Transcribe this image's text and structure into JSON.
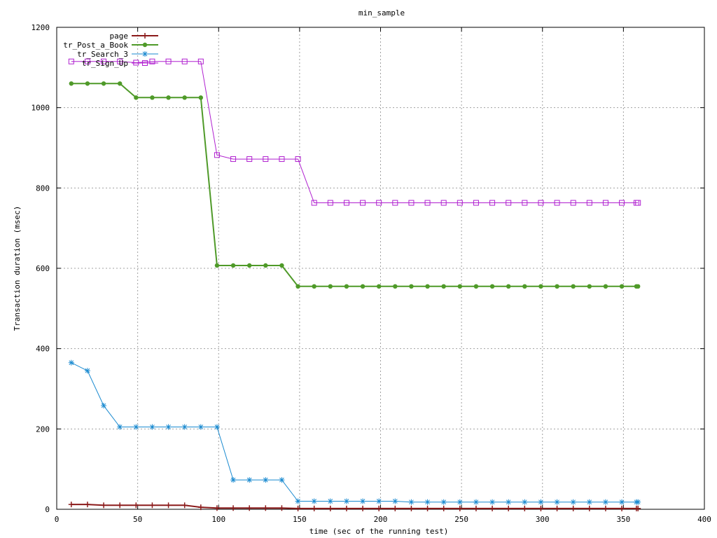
{
  "chart_data": {
    "type": "line",
    "title": "min_sample",
    "xlabel": "time (sec of the running test)",
    "ylabel": "Transaction duration (msec)",
    "xlim": [
      0,
      400
    ],
    "ylim": [
      0,
      1200
    ],
    "xticks": [
      0,
      50,
      100,
      150,
      200,
      250,
      300,
      350,
      400
    ],
    "yticks": [
      0,
      200,
      400,
      600,
      800,
      1000,
      1200
    ],
    "grid": true,
    "legend_position": "top-left",
    "x": [
      9,
      19,
      29,
      39,
      49,
      59,
      69,
      79,
      89,
      99,
      109,
      119,
      129,
      139,
      149,
      159,
      169,
      179,
      189,
      199,
      209,
      219,
      229,
      239,
      249,
      259,
      269,
      279,
      289,
      299,
      309,
      319,
      329,
      339,
      349,
      358,
      359
    ],
    "series": [
      {
        "name": "page",
        "color": "#8b1a1a",
        "marker": "plus",
        "values": [
          12,
          12,
          10,
          10,
          10,
          10,
          10,
          10,
          5,
          3,
          3,
          3,
          3,
          3,
          2,
          2,
          2,
          2,
          2,
          2,
          2,
          2,
          2,
          2,
          2,
          2,
          2,
          2,
          2,
          2,
          2,
          2,
          2,
          2,
          2,
          2,
          2
        ]
      },
      {
        "name": "tr_Post_a_Book",
        "color": "#4f9a29",
        "marker": "filled-circle",
        "values": [
          1060,
          1060,
          1060,
          1060,
          1025,
          1025,
          1025,
          1025,
          1025,
          607,
          607,
          607,
          607,
          607,
          555,
          555,
          555,
          555,
          555,
          555,
          555,
          555,
          555,
          555,
          555,
          555,
          555,
          555,
          555,
          555,
          555,
          555,
          555,
          555,
          555,
          555,
          555
        ]
      },
      {
        "name": "tr_Search_3",
        "color": "#1a8ad0",
        "marker": "star",
        "values": [
          365,
          345,
          258,
          205,
          205,
          205,
          205,
          205,
          205,
          205,
          73,
          73,
          73,
          73,
          20,
          20,
          20,
          20,
          20,
          20,
          20,
          18,
          18,
          18,
          18,
          18,
          18,
          18,
          18,
          18,
          18,
          18,
          18,
          18,
          18,
          18,
          18
        ]
      },
      {
        "name": "tr_Sign_Up",
        "color": "#b020d0",
        "marker": "open-square",
        "values": [
          1115,
          1115,
          1115,
          1115,
          1112,
          1115,
          1115,
          1115,
          1115,
          882,
          872,
          872,
          872,
          872,
          872,
          763,
          763,
          763,
          763,
          763,
          763,
          763,
          763,
          763,
          763,
          763,
          763,
          763,
          763,
          763,
          763,
          763,
          763,
          763,
          763,
          763,
          763
        ]
      }
    ]
  }
}
